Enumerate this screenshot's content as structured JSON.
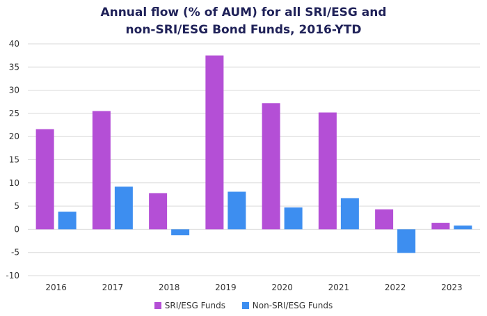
{
  "chart_data": {
    "type": "bar",
    "title_line1": "Annual flow (% of AUM) for all SRI/ESG and",
    "title_line2": "non-SRI/ESG Bond Funds, 2016-YTD",
    "xlabel": "",
    "ylabel": "",
    "categories": [
      "2016",
      "2017",
      "2018",
      "2019",
      "2020",
      "2021",
      "2022",
      "2023"
    ],
    "series": [
      {
        "name": "SRI/ESG Funds",
        "color": "#b44fd6",
        "values": [
          21.6,
          25.5,
          7.8,
          37.5,
          27.2,
          25.2,
          4.3,
          1.4
        ]
      },
      {
        "name": "Non-SRI/ESG Funds",
        "color": "#3d8ef0",
        "values": [
          3.8,
          9.2,
          -1.3,
          8.1,
          4.7,
          6.7,
          -5.1,
          0.8
        ]
      }
    ],
    "ylim": [
      -10,
      40
    ],
    "yticks": [
      "-10",
      "-5",
      "0",
      "5",
      "10",
      "15",
      "20",
      "25",
      "30",
      "35",
      "40"
    ],
    "grid": true,
    "legend_position": "bottom"
  }
}
